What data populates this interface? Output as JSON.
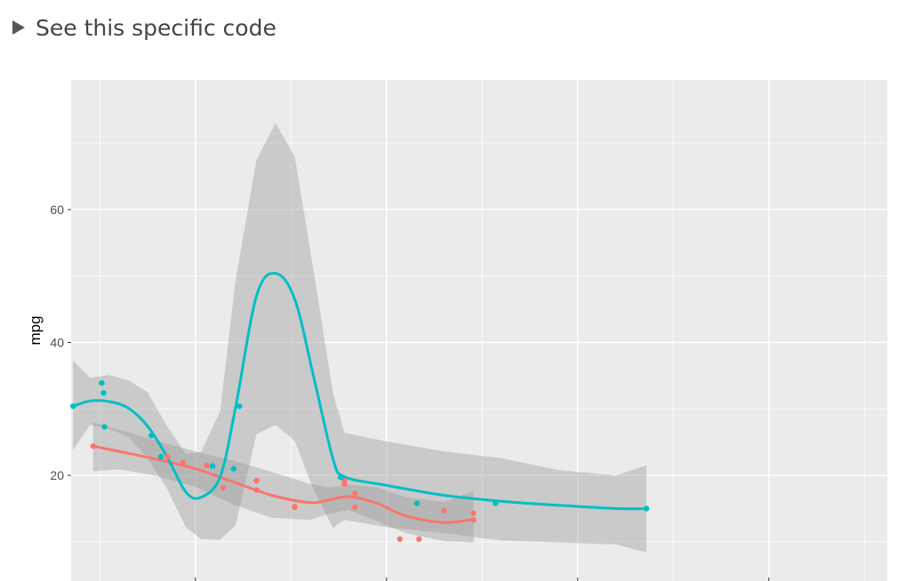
{
  "disclosure": {
    "label": "See this specific code",
    "expanded": false
  },
  "chart_data": {
    "type": "scatter",
    "title": "",
    "xlabel": "",
    "ylabel": "mpg",
    "ylim": [
      4.1,
      79.5
    ],
    "xlim": [
      1.35,
      5.62
    ],
    "y_ticks": [
      20,
      40,
      60
    ],
    "x_ticks": [
      2,
      3,
      4,
      5
    ],
    "x_tick_labels_visible": false,
    "grid": true,
    "legend": "none",
    "colors": {
      "series_a": "#F8766D",
      "series_b": "#00BFC4",
      "ribbon": "#999999",
      "panel": "#EBEBEB",
      "grid": "#FFFFFF"
    },
    "series": [
      {
        "color": "#F8766D",
        "points": [
          {
            "x": 1.465,
            "y": 24.4
          },
          {
            "x": 1.855,
            "y": 22.8
          },
          {
            "x": 1.935,
            "y": 21.9
          },
          {
            "x": 2.06,
            "y": 21.5
          },
          {
            "x": 2.145,
            "y": 18.1
          },
          {
            "x": 2.32,
            "y": 19.2
          },
          {
            "x": 2.32,
            "y": 17.8
          },
          {
            "x": 2.52,
            "y": 15.3
          },
          {
            "x": 2.52,
            "y": 15.2
          },
          {
            "x": 2.78,
            "y": 19.2
          },
          {
            "x": 2.78,
            "y": 18.7
          },
          {
            "x": 2.835,
            "y": 17.3
          },
          {
            "x": 2.835,
            "y": 15.2
          },
          {
            "x": 3.07,
            "y": 10.4
          },
          {
            "x": 3.17,
            "y": 10.4
          },
          {
            "x": 3.3,
            "y": 14.7
          },
          {
            "x": 3.455,
            "y": 14.3
          },
          {
            "x": 3.455,
            "y": 13.3
          }
        ],
        "smooth": [
          {
            "x": 1.465,
            "y": 24.4
          },
          {
            "x": 1.6,
            "y": 23.6
          },
          {
            "x": 1.8,
            "y": 22.4
          },
          {
            "x": 2.0,
            "y": 21.0
          },
          {
            "x": 2.2,
            "y": 19.0
          },
          {
            "x": 2.4,
            "y": 17.0
          },
          {
            "x": 2.6,
            "y": 15.9
          },
          {
            "x": 2.7,
            "y": 16.3
          },
          {
            "x": 2.8,
            "y": 16.8
          },
          {
            "x": 2.95,
            "y": 15.8
          },
          {
            "x": 3.1,
            "y": 13.9
          },
          {
            "x": 3.3,
            "y": 12.9
          },
          {
            "x": 3.455,
            "y": 13.4
          }
        ],
        "ribbon_upper": [
          28.0,
          26.9,
          25.2,
          23.6,
          22.2,
          20.5,
          18.7,
          18.2,
          18.6,
          18.2,
          16.7,
          16.0,
          17.6
        ],
        "ribbon_lower": [
          20.6,
          20.9,
          19.9,
          18.3,
          15.6,
          13.6,
          13.3,
          14.2,
          14.8,
          13.1,
          11.3,
          10.1,
          9.9
        ]
      },
      {
        "color": "#00BFC4",
        "points": [
          {
            "x": 1.36,
            "y": 30.4
          },
          {
            "x": 1.51,
            "y": 33.9
          },
          {
            "x": 1.52,
            "y": 32.4
          },
          {
            "x": 1.525,
            "y": 27.3
          },
          {
            "x": 1.77,
            "y": 26.0
          },
          {
            "x": 1.82,
            "y": 22.8
          },
          {
            "x": 2.09,
            "y": 21.4
          },
          {
            "x": 2.2,
            "y": 21.0
          },
          {
            "x": 2.23,
            "y": 30.4
          },
          {
            "x": 2.76,
            "y": 19.7
          },
          {
            "x": 3.16,
            "y": 15.8
          },
          {
            "x": 3.57,
            "y": 15.8
          },
          {
            "x": 4.36,
            "y": 15.0
          }
        ],
        "smooth": [
          {
            "x": 1.36,
            "y": 30.4
          },
          {
            "x": 1.45,
            "y": 31.2
          },
          {
            "x": 1.55,
            "y": 31.1
          },
          {
            "x": 1.65,
            "y": 30.1
          },
          {
            "x": 1.75,
            "y": 27.4
          },
          {
            "x": 1.85,
            "y": 22.9
          },
          {
            "x": 1.95,
            "y": 17.5
          },
          {
            "x": 2.03,
            "y": 16.7
          },
          {
            "x": 2.13,
            "y": 19.8
          },
          {
            "x": 2.21,
            "y": 30.2
          },
          {
            "x": 2.32,
            "y": 47.0
          },
          {
            "x": 2.42,
            "y": 50.4
          },
          {
            "x": 2.52,
            "y": 46.5
          },
          {
            "x": 2.62,
            "y": 34.7
          },
          {
            "x": 2.72,
            "y": 22.5
          },
          {
            "x": 2.78,
            "y": 19.8
          },
          {
            "x": 3.0,
            "y": 18.5
          },
          {
            "x": 3.3,
            "y": 17.0
          },
          {
            "x": 3.6,
            "y": 16.1
          },
          {
            "x": 3.9,
            "y": 15.5
          },
          {
            "x": 4.2,
            "y": 15.0
          },
          {
            "x": 4.36,
            "y": 15.0
          }
        ],
        "ribbon_upper": [
          37.3,
          34.7,
          35.1,
          34.3,
          32.5,
          27.5,
          23.2,
          23.5,
          29.7,
          49.3,
          67.5,
          73.0,
          68.0,
          50.6,
          32.4,
          26.4,
          25.1,
          23.6,
          22.6,
          20.8,
          20.0,
          21.5
        ],
        "ribbon_lower": [
          23.8,
          27.6,
          27.0,
          25.8,
          22.5,
          18.1,
          12.2,
          10.4,
          10.3,
          12.5,
          26.2,
          27.6,
          25.2,
          17.7,
          12.1,
          13.3,
          12.2,
          11.3,
          10.2,
          9.9,
          9.6,
          8.4
        ]
      }
    ]
  }
}
